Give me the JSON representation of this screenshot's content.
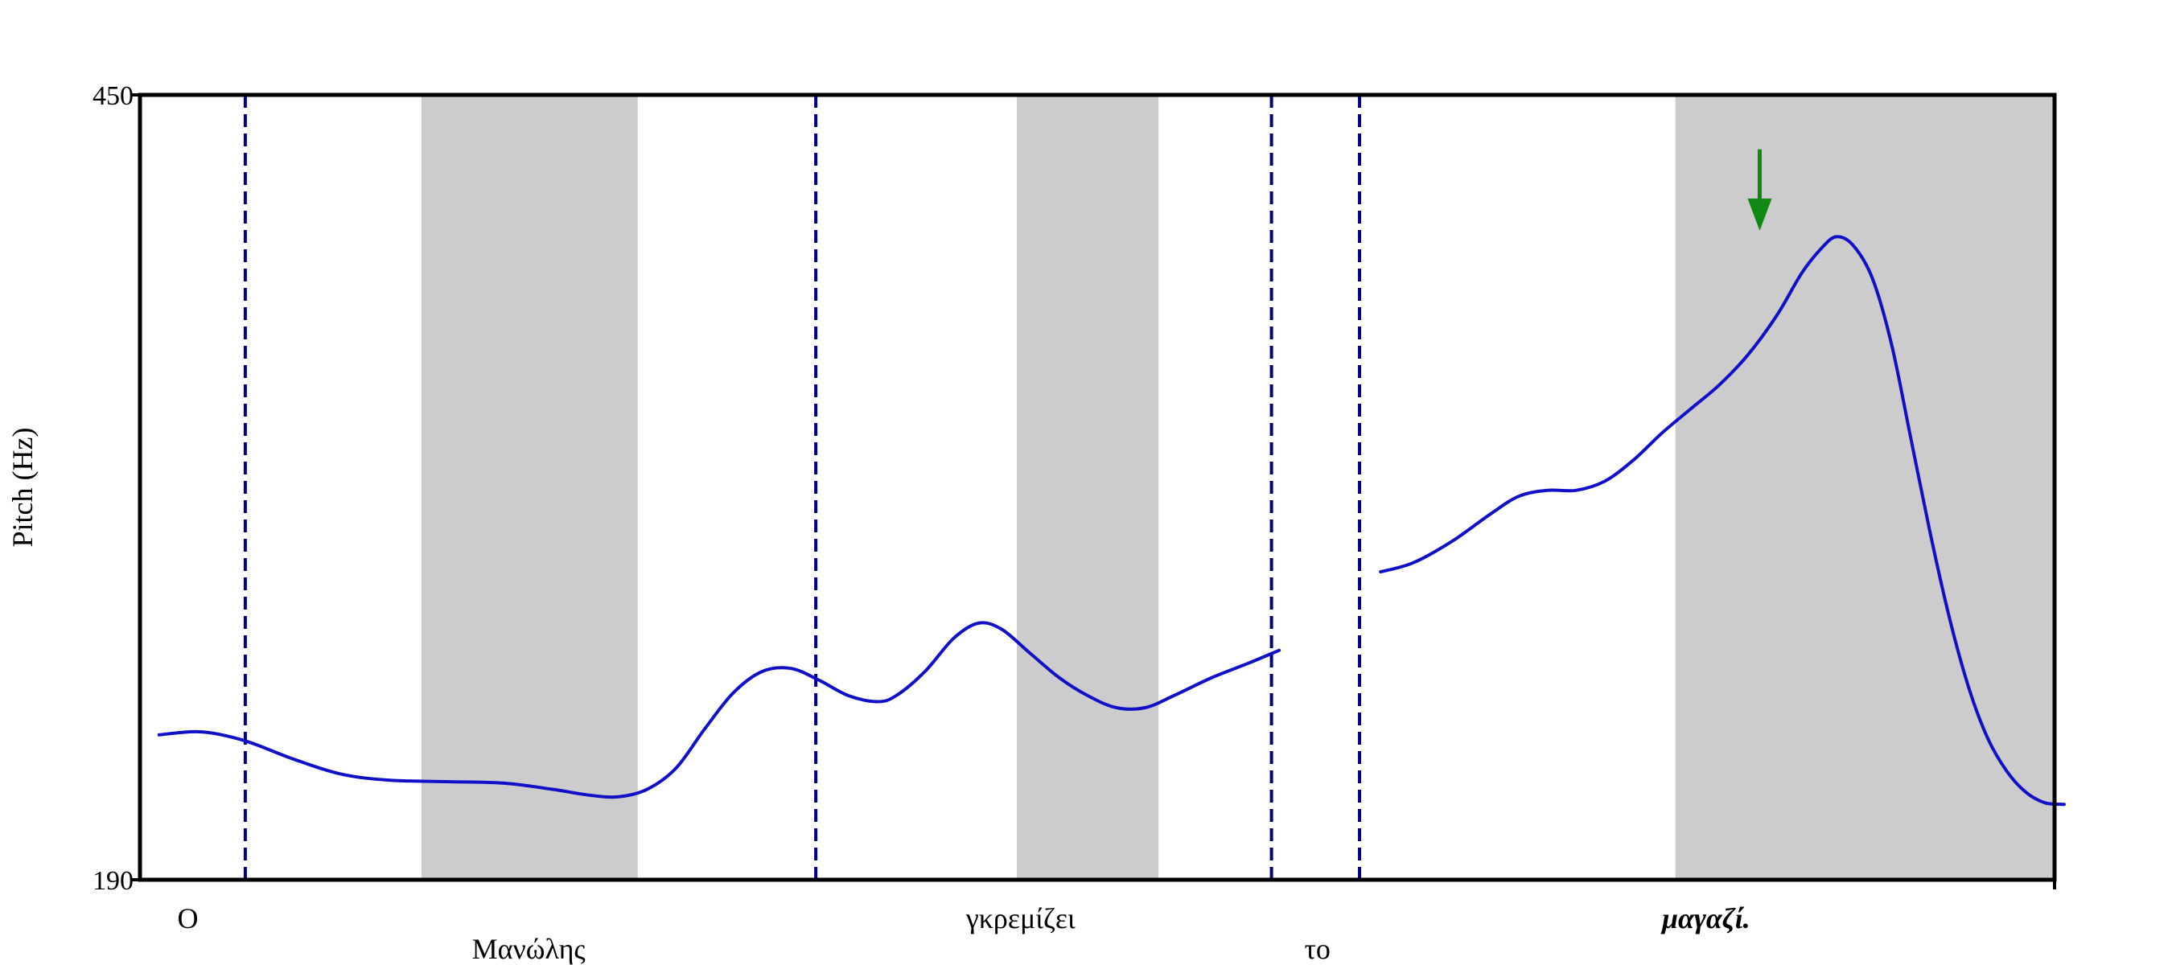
{
  "chart_data": {
    "type": "line",
    "title": "",
    "xlabel": "",
    "ylabel": "Pitch (Hz)",
    "ylim": [
      190,
      450
    ],
    "y_ticks": [
      "190",
      "450"
    ],
    "grid": false,
    "legend": "none",
    "colors": {
      "curve": "#1010c8",
      "boundary": "#00008b",
      "shade": "#cccccc",
      "arrow": "#118811",
      "axis": "#000000"
    },
    "x_range": [
      0,
      100
    ],
    "series": [
      {
        "values": [
          {
            "x": 1.0,
            "y": 238
          },
          {
            "x": 3.2,
            "y": 239
          },
          {
            "x": 5.5,
            "y": 236
          },
          {
            "x": 8.0,
            "y": 230
          },
          {
            "x": 10.5,
            "y": 225
          },
          {
            "x": 13.0,
            "y": 223
          },
          {
            "x": 16.0,
            "y": 222.5
          },
          {
            "x": 19.0,
            "y": 222
          },
          {
            "x": 21.5,
            "y": 220
          },
          {
            "x": 23.5,
            "y": 218
          },
          {
            "x": 25.0,
            "y": 217.5
          },
          {
            "x": 26.5,
            "y": 220
          },
          {
            "x": 28.0,
            "y": 227
          },
          {
            "x": 29.5,
            "y": 240
          },
          {
            "x": 31.0,
            "y": 252
          },
          {
            "x": 32.5,
            "y": 259
          },
          {
            "x": 34.0,
            "y": 260
          },
          {
            "x": 35.5,
            "y": 256
          },
          {
            "x": 37.0,
            "y": 251
          },
          {
            "x": 38.5,
            "y": 249
          },
          {
            "x": 39.5,
            "y": 251
          },
          {
            "x": 41.0,
            "y": 259
          },
          {
            "x": 42.5,
            "y": 270
          },
          {
            "x": 43.8,
            "y": 275
          },
          {
            "x": 45.0,
            "y": 273
          },
          {
            "x": 46.5,
            "y": 265
          },
          {
            "x": 48.0,
            "y": 257
          },
          {
            "x": 49.5,
            "y": 251
          },
          {
            "x": 51.0,
            "y": 247
          },
          {
            "x": 52.5,
            "y": 247
          },
          {
            "x": 54.0,
            "y": 251
          },
          {
            "x": 56.0,
            "y": 257
          },
          {
            "x": 58.0,
            "y": 262
          },
          {
            "x": 59.5,
            "y": 266
          }
        ]
      },
      {
        "values": [
          {
            "x": 64.8,
            "y": 292
          },
          {
            "x": 66.5,
            "y": 295
          },
          {
            "x": 68.5,
            "y": 302
          },
          {
            "x": 70.5,
            "y": 311
          },
          {
            "x": 72.0,
            "y": 317
          },
          {
            "x": 73.5,
            "y": 319
          },
          {
            "x": 75.0,
            "y": 319
          },
          {
            "x": 76.5,
            "y": 322
          },
          {
            "x": 78.0,
            "y": 329
          },
          {
            "x": 79.5,
            "y": 338
          },
          {
            "x": 81.0,
            "y": 346
          },
          {
            "x": 82.5,
            "y": 354
          },
          {
            "x": 84.0,
            "y": 364
          },
          {
            "x": 85.5,
            "y": 377
          },
          {
            "x": 86.8,
            "y": 391
          },
          {
            "x": 87.8,
            "y": 399
          },
          {
            "x": 88.6,
            "y": 403
          },
          {
            "x": 89.5,
            "y": 400
          },
          {
            "x": 90.5,
            "y": 389
          },
          {
            "x": 91.5,
            "y": 367
          },
          {
            "x": 92.5,
            "y": 336
          },
          {
            "x": 93.5,
            "y": 305
          },
          {
            "x": 94.5,
            "y": 277
          },
          {
            "x": 95.5,
            "y": 254
          },
          {
            "x": 96.5,
            "y": 237
          },
          {
            "x": 97.5,
            "y": 226
          },
          {
            "x": 98.5,
            "y": 219
          },
          {
            "x": 99.5,
            "y": 215.5
          },
          {
            "x": 100.5,
            "y": 215
          }
        ]
      }
    ],
    "shaded_regions": [
      {
        "x0": 14.7,
        "x1": 26.0
      },
      {
        "x0": 45.8,
        "x1": 53.2
      },
      {
        "x0": 80.2,
        "x1": 100.3
      }
    ],
    "boundaries": [
      5.5,
      35.3,
      59.1,
      63.7
    ],
    "arrow": {
      "x": 84.6,
      "y_from": 432,
      "y_to": 405
    },
    "words": [
      {
        "text": "O",
        "x": 2.5,
        "row": 1,
        "style": "normal"
      },
      {
        "text": "Μανώλης",
        "x": 20.3,
        "row": 2,
        "style": "normal"
      },
      {
        "text": "γκρεμίζει",
        "x": 46.0,
        "row": 1,
        "style": "normal"
      },
      {
        "text": "το",
        "x": 61.5,
        "row": 2,
        "style": "normal"
      },
      {
        "text": "μαγαζί.",
        "x": 81.8,
        "row": 1,
        "style": "bold-italic"
      }
    ]
  }
}
